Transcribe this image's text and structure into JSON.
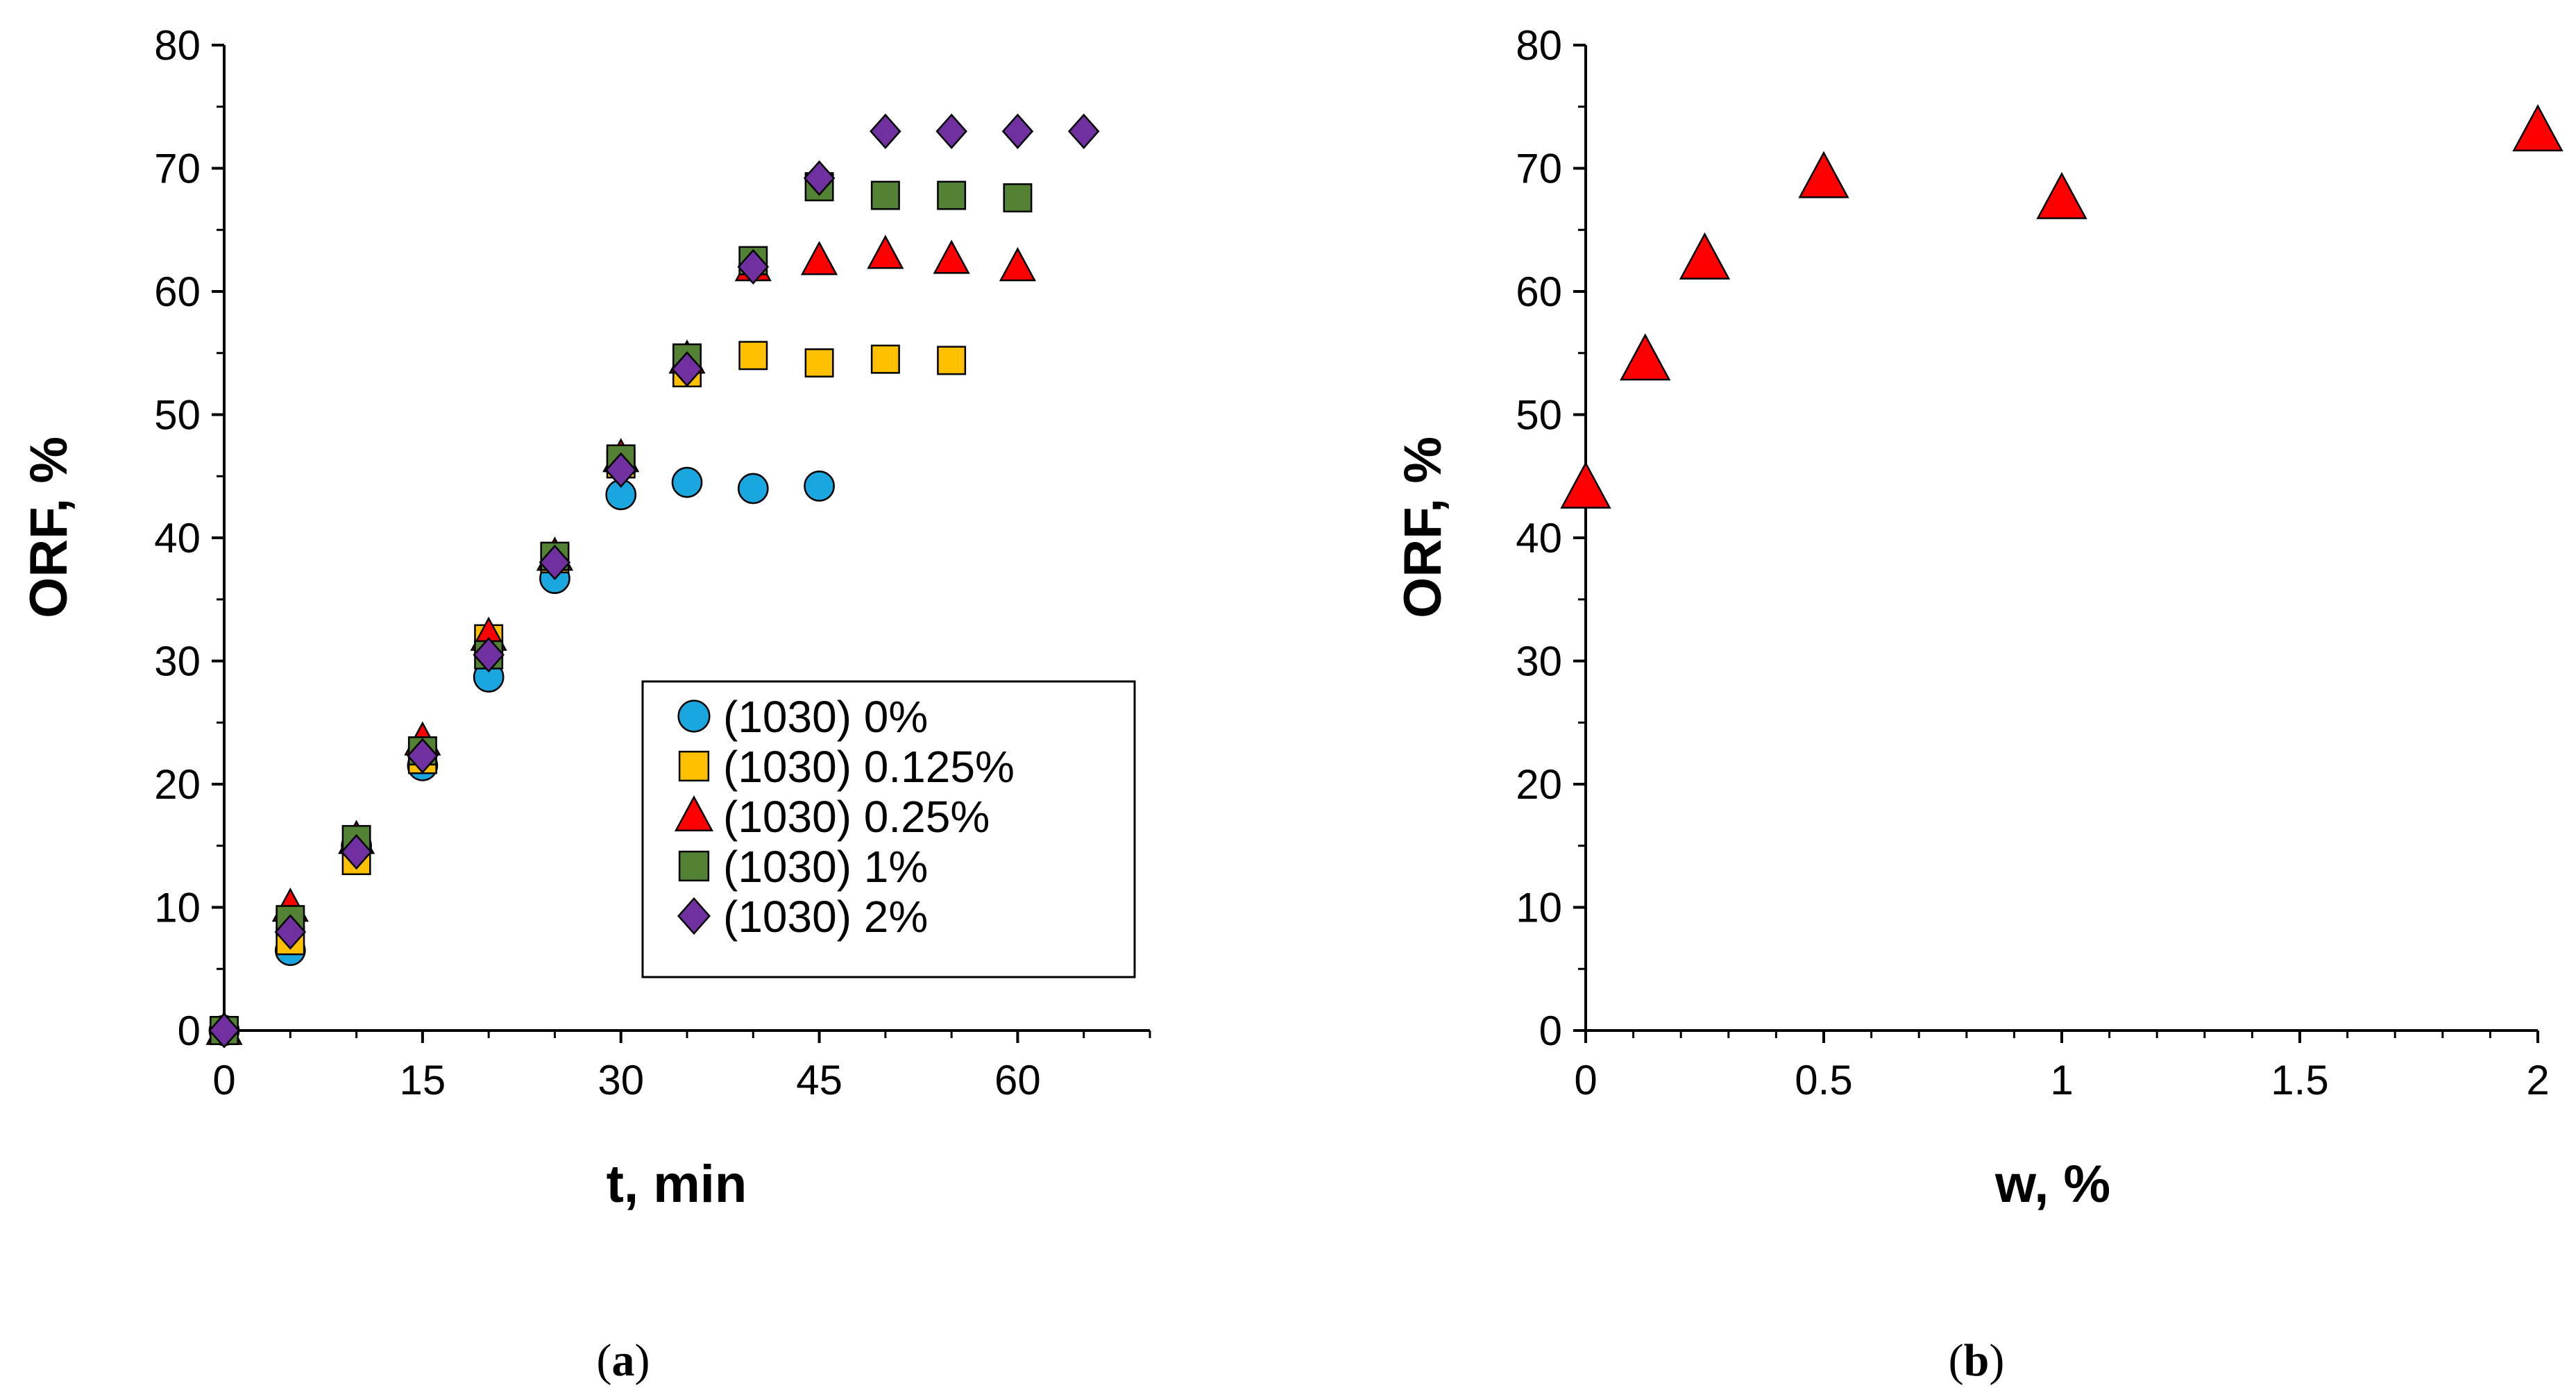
{
  "chart_data": [
    {
      "id": "a",
      "type": "scatter",
      "xlabel": "t, min",
      "ylabel": "ORF, %",
      "xlim": [
        -1,
        70
      ],
      "ylim": [
        0,
        80
      ],
      "xticks": [
        0,
        15,
        30,
        45,
        60
      ],
      "xtick_labels": [
        "0",
        "15",
        "30",
        "45",
        "60"
      ],
      "yticks": [
        0,
        10,
        20,
        30,
        40,
        50,
        60,
        70,
        80
      ],
      "ytick_labels": [
        "0",
        "10",
        "20",
        "30",
        "40",
        "50",
        "60",
        "70",
        "80"
      ],
      "x_minor_step": 5,
      "legend_position": "center-right",
      "caption_letter": "a",
      "series": [
        {
          "name": "(1030) 0%",
          "marker": "circle",
          "color": "#1aa7e0",
          "x": [
            0,
            5,
            10,
            15,
            20,
            25,
            30,
            35,
            40,
            45
          ],
          "y": [
            0,
            6.5,
            15,
            21.5,
            28.7,
            36.7,
            43.5,
            44.5,
            44,
            44.2
          ]
        },
        {
          "name": "(1030) 0.125%",
          "marker": "square",
          "color": "#ffc000",
          "x": [
            0,
            5,
            10,
            15,
            20,
            25,
            30,
            35,
            40,
            45,
            50,
            55
          ],
          "y": [
            0,
            7.3,
            13.8,
            22,
            31.8,
            38.3,
            46,
            53.4,
            54.8,
            54.2,
            54.5,
            54.4
          ]
        },
        {
          "name": "(1030) 0.25%",
          "marker": "triangle",
          "color": "#ff0000",
          "x": [
            0,
            5,
            10,
            15,
            20,
            25,
            30,
            35,
            40,
            45,
            50,
            55,
            60
          ],
          "y": [
            0,
            10,
            15.5,
            23.5,
            32,
            38.5,
            46.5,
            54.5,
            62,
            62.5,
            63,
            62.6,
            62
          ]
        },
        {
          "name": "(1030) 1%",
          "marker": "square",
          "color": "#548235",
          "x": [
            0,
            5,
            10,
            15,
            20,
            25,
            30,
            35,
            40,
            45,
            50,
            55,
            60
          ],
          "y": [
            0,
            9,
            15.5,
            22.7,
            30.5,
            38.5,
            46.4,
            54.6,
            62.5,
            68.5,
            67.8,
            67.8,
            67.6
          ]
        },
        {
          "name": "(1030) 2%",
          "marker": "diamond",
          "color": "#7030a0",
          "x": [
            0,
            5,
            10,
            15,
            20,
            25,
            30,
            35,
            40,
            45,
            50,
            55,
            60,
            65
          ],
          "y": [
            0,
            8,
            14.5,
            22.3,
            30.5,
            38,
            45.5,
            53.7,
            62,
            69.2,
            73,
            73,
            73,
            73
          ]
        }
      ]
    },
    {
      "id": "b",
      "type": "scatter",
      "xlabel": "w, %",
      "ylabel": "ORF, %",
      "xlim": [
        0,
        2
      ],
      "ylim": [
        0,
        80
      ],
      "xticks": [
        0,
        0.5,
        1,
        1.5,
        2
      ],
      "xtick_labels": [
        "0",
        "0.5",
        "1",
        "1.5",
        "2"
      ],
      "yticks": [
        0,
        10,
        20,
        30,
        40,
        50,
        60,
        70,
        80
      ],
      "ytick_labels": [
        "0",
        "10",
        "20",
        "30",
        "40",
        "50",
        "60",
        "70",
        "80"
      ],
      "x_minor_step": 0.1,
      "caption_letter": "b",
      "series": [
        {
          "name": "ORF",
          "marker": "triangle",
          "color": "#ff0000",
          "x": [
            0,
            0.125,
            0.25,
            0.5,
            1,
            2
          ],
          "y": [
            44,
            54.4,
            62.6,
            69.2,
            67.5,
            73
          ]
        }
      ]
    }
  ]
}
